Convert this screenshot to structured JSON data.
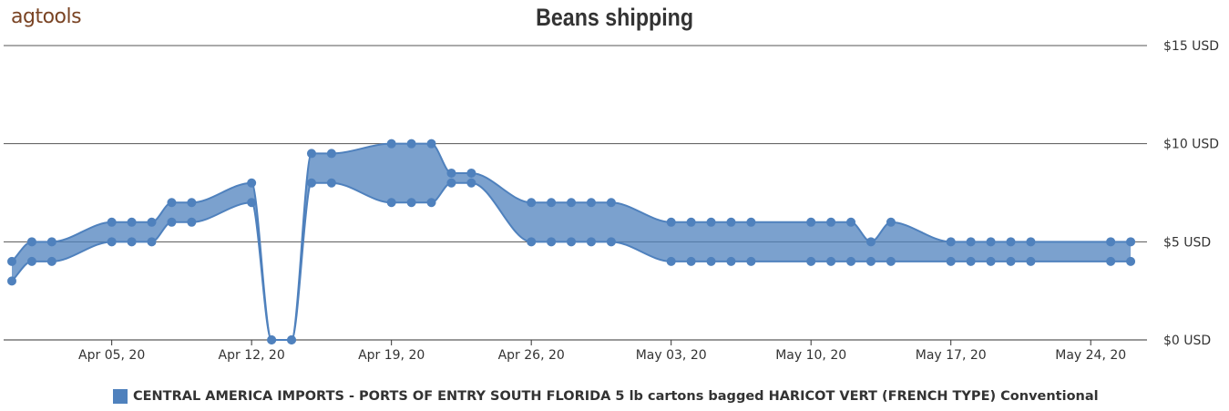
{
  "logo": "agtools",
  "chart_data": {
    "type": "area-range",
    "title": "Beans shipping",
    "x_ticks": [
      "Apr 05, 20",
      "Apr 12, 20",
      "Apr 19, 20",
      "Apr 26, 20",
      "May 03, 20",
      "May 10, 20",
      "May 17, 20",
      "May 24, 20"
    ],
    "y_ticks": [
      "$0 USD",
      "$5 USD",
      "$10 USD",
      "$15 USD"
    ],
    "ylim": [
      0,
      15
    ],
    "y_axis_position": "right",
    "grid": true,
    "legend_position": "bottom",
    "series": [
      {
        "name": "CENTRAL AMERICA IMPORTS - PORTS OF ENTRY SOUTH FLORIDA  5 lb cartons bagged HARICOT VERT (FRENCH TYPE) Conventional",
        "color": "#4f81bd",
        "points": [
          {
            "date": "2020-03-31",
            "low": 3,
            "high": 4
          },
          {
            "date": "2020-04-01",
            "low": 4,
            "high": 5
          },
          {
            "date": "2020-04-02",
            "low": 4,
            "high": 5
          },
          {
            "date": "2020-04-05",
            "low": 5,
            "high": 6
          },
          {
            "date": "2020-04-06",
            "low": 5,
            "high": 6
          },
          {
            "date": "2020-04-07",
            "low": 5,
            "high": 6
          },
          {
            "date": "2020-04-08",
            "low": 6,
            "high": 7
          },
          {
            "date": "2020-04-09",
            "low": 6,
            "high": 7
          },
          {
            "date": "2020-04-12",
            "low": 7,
            "high": 8
          },
          {
            "date": "2020-04-13",
            "low": 0,
            "high": 0
          },
          {
            "date": "2020-04-14",
            "low": 0,
            "high": 0
          },
          {
            "date": "2020-04-15",
            "low": 8,
            "high": 9.5
          },
          {
            "date": "2020-04-16",
            "low": 8,
            "high": 9.5
          },
          {
            "date": "2020-04-19",
            "low": 7,
            "high": 10
          },
          {
            "date": "2020-04-20",
            "low": 7,
            "high": 10
          },
          {
            "date": "2020-04-21",
            "low": 7,
            "high": 10
          },
          {
            "date": "2020-04-22",
            "low": 8,
            "high": 8.5
          },
          {
            "date": "2020-04-23",
            "low": 8,
            "high": 8.5
          },
          {
            "date": "2020-04-26",
            "low": 5,
            "high": 7
          },
          {
            "date": "2020-04-27",
            "low": 5,
            "high": 7
          },
          {
            "date": "2020-04-28",
            "low": 5,
            "high": 7
          },
          {
            "date": "2020-04-29",
            "low": 5,
            "high": 7
          },
          {
            "date": "2020-04-30",
            "low": 5,
            "high": 7
          },
          {
            "date": "2020-05-03",
            "low": 4,
            "high": 6
          },
          {
            "date": "2020-05-04",
            "low": 4,
            "high": 6
          },
          {
            "date": "2020-05-05",
            "low": 4,
            "high": 6
          },
          {
            "date": "2020-05-06",
            "low": 4,
            "high": 6
          },
          {
            "date": "2020-05-07",
            "low": 4,
            "high": 6
          },
          {
            "date": "2020-05-10",
            "low": 4,
            "high": 6
          },
          {
            "date": "2020-05-11",
            "low": 4,
            "high": 6
          },
          {
            "date": "2020-05-12",
            "low": 4,
            "high": 6
          },
          {
            "date": "2020-05-13",
            "low": 4,
            "high": 5
          },
          {
            "date": "2020-05-14",
            "low": 4,
            "high": 6
          },
          {
            "date": "2020-05-17",
            "low": 4,
            "high": 5
          },
          {
            "date": "2020-05-18",
            "low": 4,
            "high": 5
          },
          {
            "date": "2020-05-19",
            "low": 4,
            "high": 5
          },
          {
            "date": "2020-05-20",
            "low": 4,
            "high": 5
          },
          {
            "date": "2020-05-21",
            "low": 4,
            "high": 5
          },
          {
            "date": "2020-05-25",
            "low": 4,
            "high": 5
          },
          {
            "date": "2020-05-26",
            "low": 4,
            "high": 5
          }
        ]
      }
    ]
  }
}
